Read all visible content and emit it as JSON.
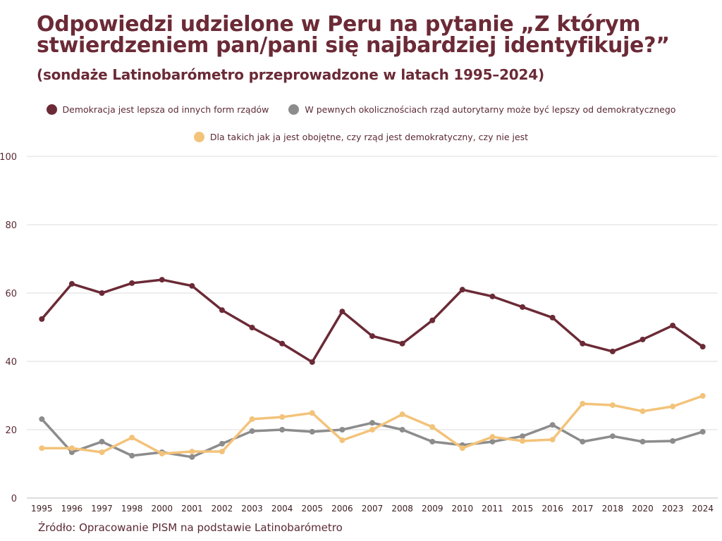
{
  "title_line1": "Odpowiedzi udzielone w Peru na pytanie „Z którym",
  "title_line2": "stwierdzeniem pan/pani się najbardziej identyfikuje?”",
  "subtitle": "(sondaże Latinobarómetro przeprowadzone w latach 1995–2024)",
  "source": "Źródło: Opracowanie PISM na podstawie Latinobarómetro",
  "colors": {
    "democracy": "#6b2a36",
    "authoritarian": "#8c8c8c",
    "indifferent": "#f3c37a",
    "grid": "#dddddd",
    "text": "#5b2a33"
  },
  "chart_data": {
    "type": "line",
    "title": "Odpowiedzi udzielone w Peru na pytanie „Z którym stwierdzeniem pan/pani się najbardziej identyfikuje?”",
    "subtitle": "(sondaże Latinobarómetro przeprowadzone w latach 1995–2024)",
    "xlabel": "",
    "ylabel": "",
    "ylim": [
      0,
      100
    ],
    "yticks": [
      0,
      20,
      40,
      60,
      80,
      100
    ],
    "grid": true,
    "legend_position": "top",
    "categories": [
      "1995",
      "1996",
      "1997",
      "1998",
      "2000",
      "2001",
      "2002",
      "2003",
      "2004",
      "2005",
      "2006",
      "2007",
      "2008",
      "2009",
      "2010",
      "2011",
      "2015",
      "2016",
      "2017",
      "2018",
      "2020",
      "2023",
      "2024"
    ],
    "series": [
      {
        "name": "Demokracja jest lepsza od innych form rządów",
        "color": "#6b2a36",
        "values": [
          52.4,
          62.7,
          60.0,
          62.9,
          63.9,
          62.1,
          55.0,
          49.9,
          45.2,
          39.8,
          54.6,
          47.4,
          45.2,
          52.0,
          61.0,
          59.0,
          55.9,
          52.8,
          45.2,
          42.9,
          46.4,
          50.5,
          44.3
        ]
      },
      {
        "name": "W pewnych okolicznościach rząd autorytarny może być lepszy od demokratycznego",
        "color": "#8c8c8c",
        "values": [
          23.1,
          13.4,
          16.5,
          12.4,
          13.4,
          12.0,
          15.9,
          19.6,
          20.0,
          19.4,
          20.0,
          22.0,
          20.0,
          16.5,
          15.5,
          16.5,
          18.1,
          21.4,
          16.5,
          18.1,
          16.5,
          16.7,
          19.4
        ]
      },
      {
        "name": "Dla takich jak ja jest obojętne, czy rząd jest demokratyczny, czy nie jest",
        "color": "#f3c37a",
        "values": [
          14.6,
          14.6,
          13.4,
          17.7,
          13.0,
          13.6,
          13.6,
          23.1,
          23.7,
          24.9,
          16.9,
          20.0,
          24.5,
          20.8,
          14.6,
          17.9,
          16.7,
          17.1,
          27.6,
          27.2,
          25.4,
          26.8,
          29.9
        ]
      }
    ]
  }
}
